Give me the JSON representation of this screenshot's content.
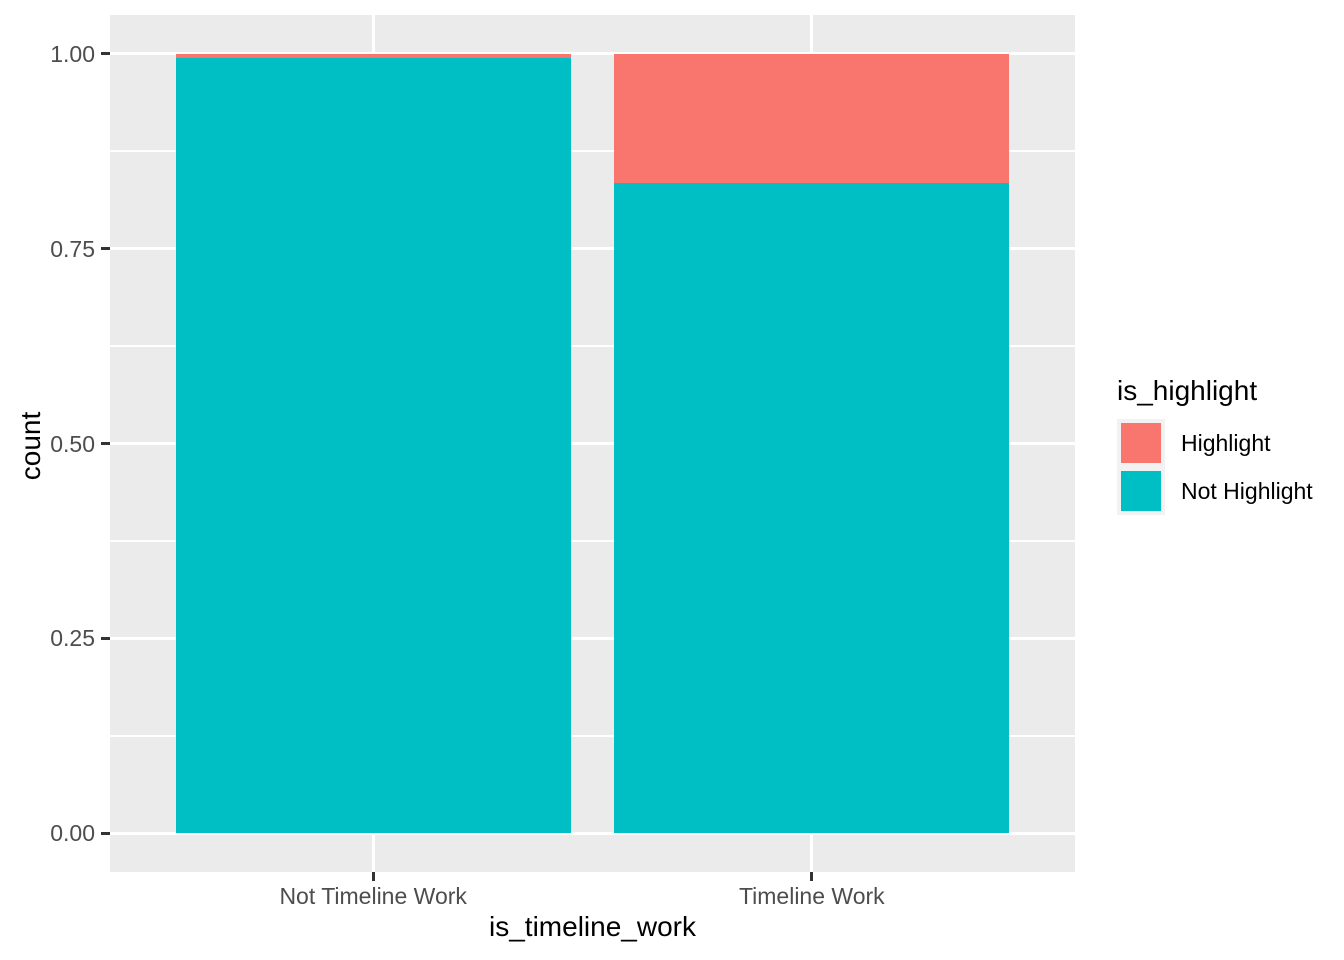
{
  "chart_data": {
    "type": "bar",
    "stacked": true,
    "orientation": "vertical",
    "title": "",
    "xlabel": "is_timeline_work",
    "ylabel": "count",
    "categories": [
      "Not Timeline Work",
      "Timeline Work"
    ],
    "series": [
      {
        "name": "Highlight",
        "color": "#F8766D",
        "values": [
          0.005,
          0.166
        ]
      },
      {
        "name": "Not Highlight",
        "color": "#00BFC4",
        "values": [
          0.995,
          0.834
        ]
      }
    ],
    "ylim": [
      0,
      1
    ],
    "y_axis": {
      "tick_labels": [
        "0.00",
        "0.25",
        "0.50",
        "0.75",
        "1.00"
      ],
      "tick_values": [
        0,
        0.25,
        0.5,
        0.75,
        1.0
      ],
      "minor_tick_values": [
        0.125,
        0.375,
        0.625,
        0.875
      ]
    },
    "legend": {
      "title": "is_highlight",
      "position": "right",
      "entries": [
        {
          "label": "Highlight",
          "color": "#F8766D"
        },
        {
          "label": "Not Highlight",
          "color": "#00BFC4"
        }
      ]
    },
    "grid": "major and minor horizontal white gridlines, vertical major at category centers"
  },
  "style": {
    "figure_background": "#FFFFFF",
    "panel_background": "#EBEBEB",
    "grid_color": "#FFFFFF",
    "tick_color": "#333333",
    "tick_label_color": "#4D4D4D",
    "axis_title_color": "#000000",
    "legend_key_background": "#F2F2F2",
    "highlight_color": "#F8766D",
    "not_highlight_color": "#00BFC4"
  }
}
